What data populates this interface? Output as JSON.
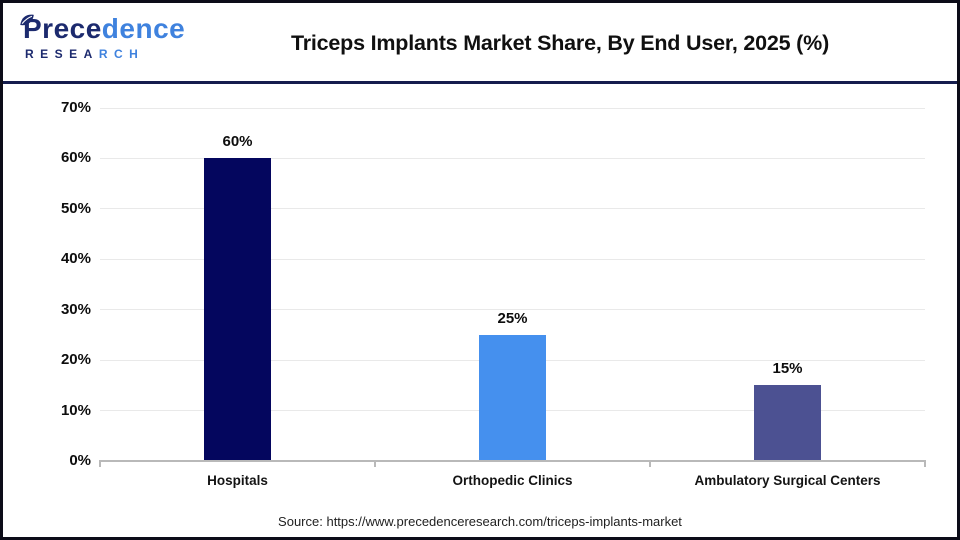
{
  "header": {
    "logo": {
      "name_dark": "Prece",
      "name_light": "dence",
      "sub_dark": "RESEA",
      "sub_light": "RCH",
      "color_dark": "#1c2a6e",
      "color_light": "#3f82de"
    },
    "title": "Triceps Implants Market Share, By End User, 2025 (%)"
  },
  "chart_data": {
    "type": "bar",
    "title": "Triceps Implants Market Share, By End User, 2025 (%)",
    "categories": [
      "Hospitals",
      "Orthopedic Clinics",
      "Ambulatory Surgical Centers"
    ],
    "values": [
      60,
      25,
      15
    ],
    "value_labels": [
      "60%",
      "25%",
      "15%"
    ],
    "bar_colors": [
      "#04065e",
      "#4590ee",
      "#4c5192"
    ],
    "xlabel": "",
    "ylabel": "",
    "ylim": [
      0,
      70
    ],
    "ytick_step": 10,
    "ytick_labels": [
      "0%",
      "10%",
      "20%",
      "30%",
      "40%",
      "50%",
      "60%",
      "70%"
    ],
    "grid": true,
    "legend": false,
    "gridline_color": "#e9e9e9",
    "axis_color": "#b9b9b9"
  },
  "footer": {
    "source": "Source: https://www.precedenceresearch.com/triceps-implants-market"
  }
}
